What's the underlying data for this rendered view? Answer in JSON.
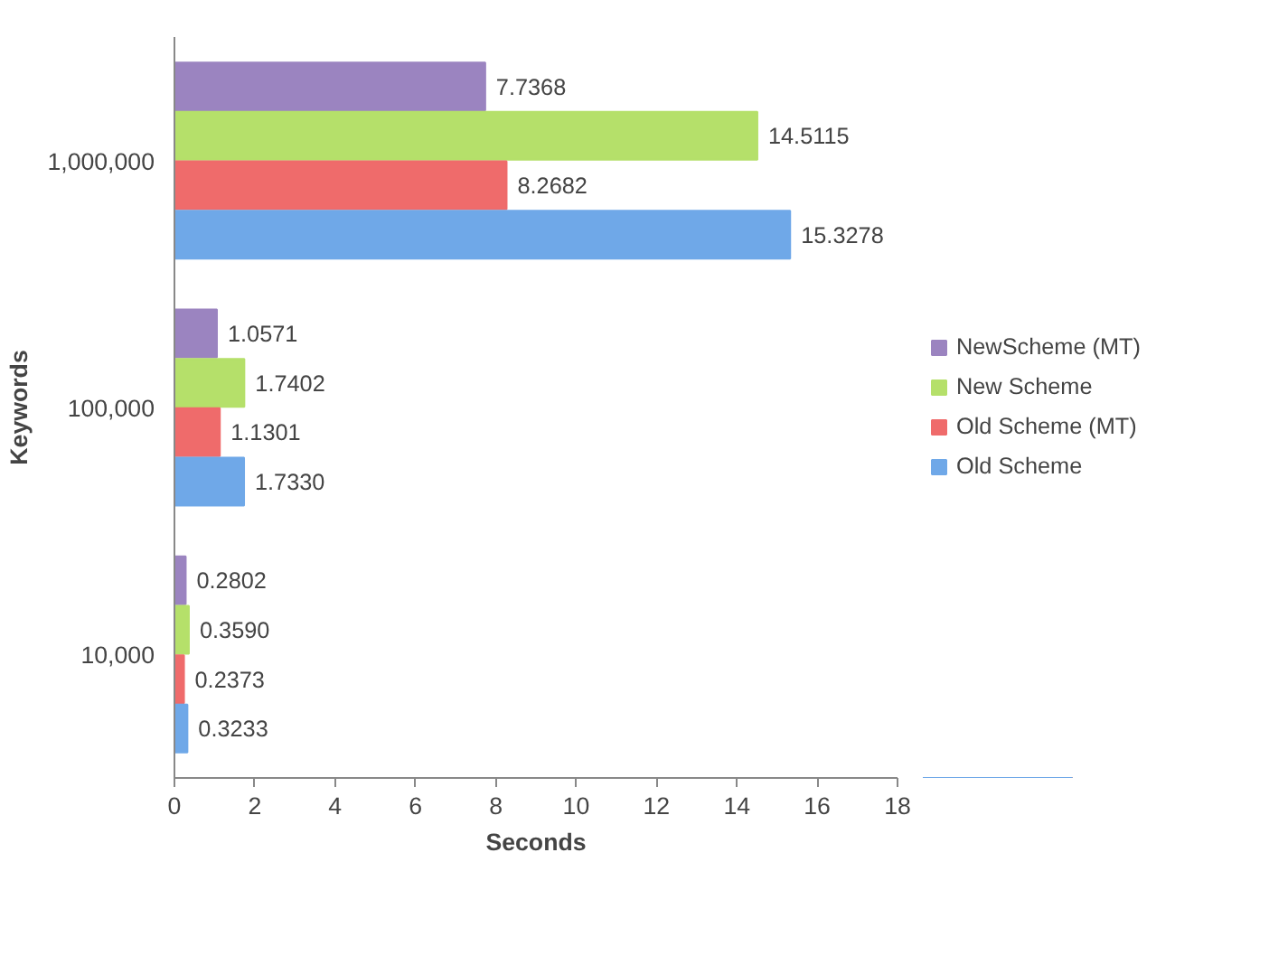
{
  "chart_data": {
    "type": "bar",
    "orientation": "horizontal",
    "xlabel": "Seconds",
    "ylabel": "Keywords",
    "categories": [
      "1,000,000",
      "100,000",
      "10,000"
    ],
    "series": [
      {
        "name": "NewScheme (MT)",
        "color": "#9b84c0",
        "values": [
          7.7368,
          1.0571,
          0.2802
        ],
        "value_labels": [
          "7.7368",
          "1.0571",
          "0.2802"
        ]
      },
      {
        "name": "New Scheme",
        "color": "#b5e06a",
        "values": [
          14.5115,
          1.7402,
          0.359
        ],
        "value_labels": [
          "14.5115",
          "1.7402",
          "0.3590"
        ]
      },
      {
        "name": "Old Scheme (MT)",
        "color": "#ef6b6b",
        "values": [
          8.2682,
          1.1301,
          0.2373
        ],
        "value_labels": [
          "8.2682",
          "1.1301",
          "0.2373"
        ]
      },
      {
        "name": "Old Scheme",
        "color": "#6fa8e8",
        "values": [
          15.3278,
          1.733,
          0.3233
        ],
        "value_labels": [
          "15.3278",
          "1.7330",
          "0.3233"
        ]
      }
    ],
    "xlim": [
      0,
      18
    ],
    "xticks": [
      0,
      2,
      4,
      6,
      8,
      10,
      12,
      14,
      16,
      18
    ],
    "grid": false,
    "legend": "right"
  }
}
